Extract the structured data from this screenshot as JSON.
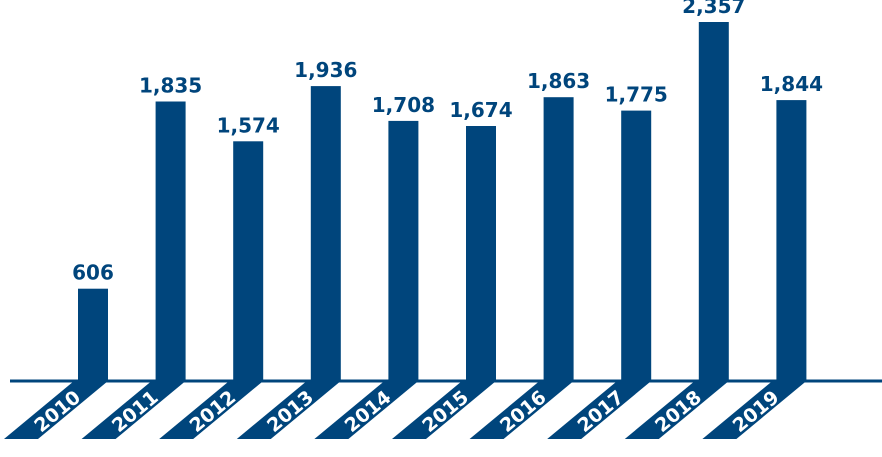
{
  "chart_data": {
    "type": "bar",
    "categories": [
      "2010",
      "2011",
      "2012",
      "2013",
      "2014",
      "2015",
      "2016",
      "2017",
      "2018",
      "2019"
    ],
    "values": [
      606,
      1835,
      1574,
      1936,
      1708,
      1674,
      1863,
      1775,
      2357,
      1844
    ],
    "value_labels": [
      "606",
      "1,835",
      "1,574",
      "1,936",
      "1,708",
      "1,674",
      "1,863",
      "1,775",
      "2,357",
      "1,844"
    ],
    "title": "",
    "xlabel": "",
    "ylabel": "",
    "ylim": [
      0,
      2357
    ],
    "grid": false,
    "colors": {
      "bar": "#00457c",
      "label": "#00457c",
      "baseline": "#00457c",
      "category_text": "#ffffff"
    }
  }
}
